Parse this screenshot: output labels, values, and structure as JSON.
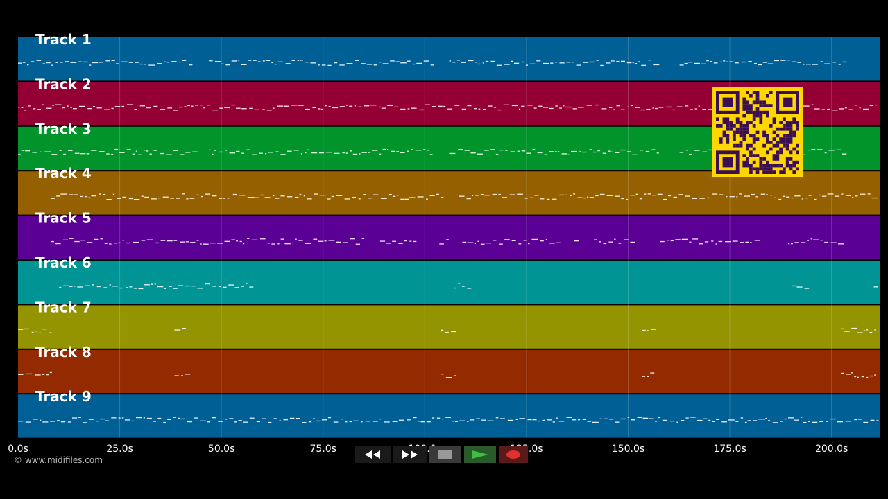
{
  "tracks": [
    {
      "label": "Track 1",
      "color": "#005f94",
      "pattern": "melody-a"
    },
    {
      "label": "Track 2",
      "color": "#940033",
      "pattern": "melody-b"
    },
    {
      "label": "Track 3",
      "color": "#00942a",
      "pattern": "melody-a"
    },
    {
      "label": "Track 4",
      "color": "#946000",
      "pattern": "melody-c"
    },
    {
      "label": "Track 5",
      "color": "#5a0094",
      "pattern": "sparse"
    },
    {
      "label": "Track 6",
      "color": "#009494",
      "pattern": "hits"
    },
    {
      "label": "Track 7",
      "color": "#949400",
      "pattern": "accents"
    },
    {
      "label": "Track 8",
      "color": "#942a00",
      "pattern": "accents"
    },
    {
      "label": "Track 9",
      "color": "#005f94",
      "pattern": "dense"
    }
  ],
  "timeline": {
    "ticks": [
      "0.0s",
      "25.0s",
      "50.0s",
      "75.0s",
      "100.0s",
      "125.0s",
      "150.0s",
      "175.0s",
      "200.0s"
    ],
    "tick_values": [
      0,
      25,
      50,
      75,
      100,
      125,
      150,
      175,
      200
    ],
    "max_seconds": 212
  },
  "copyright": "© www.midifiles.com",
  "transport": {
    "rewind": {
      "icon": "rewind-icon",
      "color": "#1a1a1a"
    },
    "fast_forward": {
      "icon": "fast-forward-icon",
      "color": "#1a1a1a"
    },
    "stop": {
      "icon": "stop-icon",
      "color": "#3a3a3a"
    },
    "play": {
      "icon": "play-icon",
      "color": "#2a5a2a"
    },
    "record": {
      "icon": "record-icon",
      "color": "#5a1a1a"
    }
  },
  "qr_code": {
    "icon": "qr-code-icon",
    "color": "#ffd700"
  }
}
